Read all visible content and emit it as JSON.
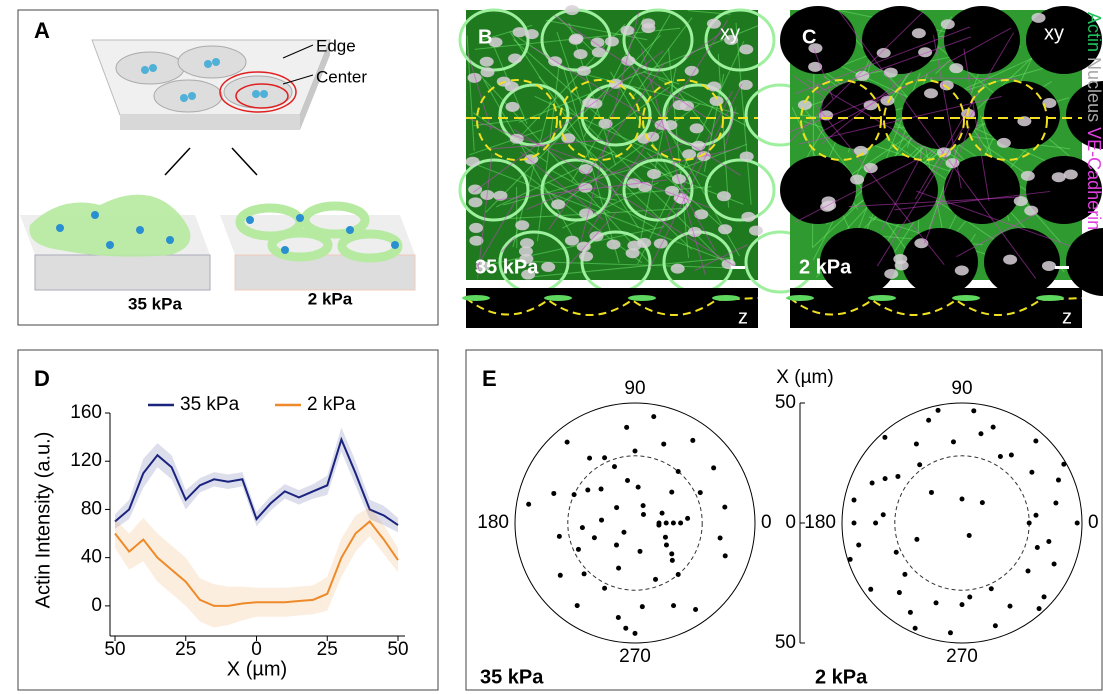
{
  "panel_a": {
    "label": "A",
    "edge": "Edge",
    "center": "Center",
    "stiff": "35 kPa",
    "soft": "2 kPa"
  },
  "panel_b": {
    "label": "B",
    "view_xy": "xy",
    "stiffness": "35 kPa",
    "view_z": "z"
  },
  "panel_c": {
    "label": "C",
    "view_xy": "xy",
    "stiffness": "2 kPa",
    "view_z": "z"
  },
  "stain_legend": [
    {
      "text": "Actin",
      "color": "#1fc25a"
    },
    {
      "text": "Nucleus",
      "color": "#a8a8a8"
    },
    {
      "text": "VE-Cadherin",
      "color": "#e040e0"
    }
  ],
  "panel_e": {
    "label": "E",
    "x_label": "X (µm)"
  },
  "chart_data": [
    {
      "type": "line",
      "panel": "D",
      "x_label": "X (µm)",
      "y_label": "Actin Intensity (a.u.)",
      "x": [
        -50,
        -45,
        -40,
        -35,
        -30,
        -25,
        -20,
        -15,
        -10,
        -5,
        0,
        5,
        10,
        15,
        20,
        25,
        30,
        35,
        40,
        45,
        50
      ],
      "xlim": [
        -50,
        50
      ],
      "xticks": [
        {
          "value": -50,
          "label": "50"
        },
        {
          "value": -25,
          "label": "25"
        },
        0,
        25,
        50
      ],
      "ylim": [
        -25,
        160
      ],
      "yticks": [
        0,
        40,
        80,
        120,
        160
      ],
      "legend": "top",
      "series": [
        {
          "name": "35 kPa",
          "color": "#1a237e",
          "values": [
            70,
            80,
            110,
            125,
            115,
            88,
            100,
            105,
            103,
            105,
            72,
            85,
            95,
            90,
            95,
            100,
            138,
            110,
            80,
            75,
            67
          ],
          "errors": [
            6,
            8,
            12,
            10,
            10,
            8,
            6,
            6,
            6,
            6,
            6,
            6,
            6,
            6,
            6,
            8,
            10,
            10,
            8,
            8,
            6
          ]
        },
        {
          "name": "2 kPa",
          "color": "#ee8a2a",
          "values": [
            60,
            45,
            55,
            40,
            30,
            20,
            5,
            0,
            0,
            2,
            3,
            3,
            3,
            4,
            5,
            10,
            40,
            60,
            70,
            55,
            38
          ],
          "errors": [
            12,
            15,
            18,
            20,
            20,
            20,
            18,
            18,
            16,
            14,
            12,
            12,
            12,
            12,
            12,
            14,
            16,
            15,
            12,
            12,
            10
          ]
        }
      ]
    },
    {
      "type": "polar_scatter",
      "title": "35 kPa",
      "color": "#000000",
      "rlim": [
        0,
        50
      ],
      "inner_circle": 28,
      "thetaticks": [
        0,
        90,
        180,
        270
      ],
      "theta": [
        10,
        25,
        40,
        55,
        70,
        85,
        95,
        110,
        125,
        140,
        155,
        170,
        185,
        200,
        215,
        230,
        245,
        260,
        275,
        290,
        305,
        320,
        335,
        350,
        5,
        20,
        35,
        50,
        65,
        80,
        100,
        115,
        130,
        145,
        160,
        175,
        190,
        205,
        220,
        235,
        250,
        265,
        280,
        295,
        310,
        325,
        340,
        355,
        0,
        0,
        0,
        0,
        90,
        270,
        45,
        135,
        225,
        315
      ],
      "r": [
        38,
        30,
        20,
        42,
        35,
        15,
        40,
        25,
        33,
        10,
        28,
        45,
        22,
        18,
        38,
        12,
        30,
        40,
        35,
        25,
        44,
        20,
        14,
        36,
        22,
        12,
        40,
        28,
        8,
        45,
        18,
        30,
        44,
        24,
        36,
        14,
        32,
        26,
        6,
        42,
        20,
        44,
        12,
        38,
        28,
        16,
        40,
        10,
        10,
        13,
        16,
        19,
        30,
        46,
        5,
        20,
        30,
        22
      ]
    },
    {
      "type": "polar_scatter",
      "title": "2 kPa",
      "color": "#000000",
      "rlim": [
        0,
        50
      ],
      "inner_circle": 28,
      "thetaticks": [
        0,
        90,
        180,
        270
      ],
      "rticks": [
        0,
        50
      ],
      "theta": [
        0,
        12,
        24,
        36,
        48,
        60,
        72,
        84,
        96,
        108,
        120,
        132,
        144,
        156,
        168,
        180,
        192,
        204,
        216,
        228,
        240,
        252,
        264,
        276,
        288,
        300,
        312,
        324,
        336,
        348,
        6,
        30,
        54,
        78,
        102,
        126,
        150,
        174,
        198,
        222,
        246,
        270,
        294,
        318,
        342,
        90,
        180,
        0,
        45,
        200,
        300,
        135
      ],
      "r": [
        48,
        40,
        44,
        36,
        46,
        32,
        42,
        47,
        34,
        45,
        38,
        48,
        33,
        41,
        46,
        36,
        44,
        30,
        47,
        39,
        43,
        35,
        46,
        31,
        45,
        40,
        48,
        34,
        42,
        37,
        31,
        49,
        35,
        38,
        48,
        30,
        37,
        33,
        49,
        32,
        48,
        34,
        30,
        46,
        33,
        10,
        45,
        28,
        12,
        20,
        6,
        18
      ]
    }
  ]
}
